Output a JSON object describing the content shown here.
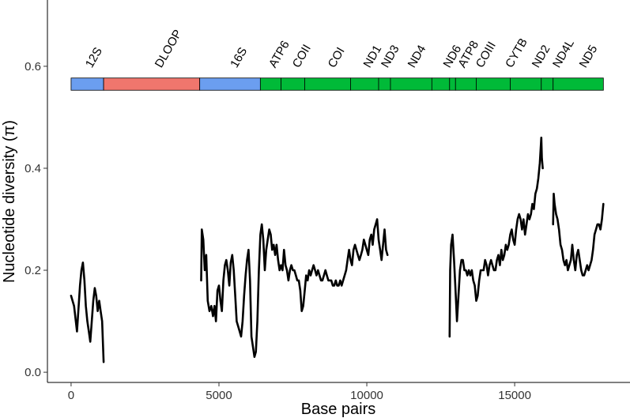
{
  "chart_data": {
    "type": "line",
    "xlabel": "Base pairs",
    "ylabel": "Nucleotide diversity  (π)",
    "xlim": [
      -800,
      18900
    ],
    "ylim": [
      -0.02,
      0.73
    ],
    "x_ticks": [
      0,
      5000,
      10000,
      15000
    ],
    "x_tick_labels": [
      "0",
      "5000",
      "10000",
      "15000"
    ],
    "y_ticks": [
      0.0,
      0.2,
      0.4,
      0.6
    ],
    "y_tick_labels": [
      "0.0",
      "0.2",
      "0.4",
      "0.6"
    ],
    "grid": false,
    "line_color": "#000000",
    "gene_bar_y": [
      0.553,
      0.577
    ],
    "genes": [
      {
        "name": "12S",
        "start": 0,
        "end": 1100,
        "color": "#6b9ef0",
        "label_x": 700
      },
      {
        "name": "DLOOP",
        "start": 1100,
        "end": 4350,
        "color": "#f0766d",
        "label_x": 3050
      },
      {
        "name": "16S",
        "start": 4350,
        "end": 6400,
        "color": "#6b9ef0",
        "label_x": 5600
      },
      {
        "name": "ATP6",
        "start": 6400,
        "end": 7100,
        "color": "#00ba38",
        "label_x": 6900
      },
      {
        "name": "COII",
        "start": 7100,
        "end": 7900,
        "color": "#00ba38",
        "label_x": 7700
      },
      {
        "name": "COI",
        "start": 7900,
        "end": 9450,
        "color": "#00ba38",
        "label_x": 8900
      },
      {
        "name": "ND1",
        "start": 9450,
        "end": 10400,
        "color": "#00ba38",
        "label_x": 10100
      },
      {
        "name": "ND3",
        "start": 10400,
        "end": 10800,
        "color": "#00ba38",
        "label_x": 10700
      },
      {
        "name": "ND4",
        "start": 10800,
        "end": 12200,
        "color": "#00ba38",
        "label_x": 11600
      },
      {
        "name": "ND6",
        "start": 12200,
        "end": 12800,
        "color": "#00ba38",
        "label_x": 12800
      },
      {
        "name": "ATP8",
        "start": 12800,
        "end": 13000,
        "color": "#00ba38",
        "label_x": 13300
      },
      {
        "name": "COIII",
        "start": 13000,
        "end": 13700,
        "color": "#00ba38",
        "label_x": 13900
      },
      {
        "name": "CYTB",
        "start": 13700,
        "end": 14850,
        "color": "#00ba38",
        "label_x": 14900
      },
      {
        "name": "ND2",
        "start": 14850,
        "end": 15900,
        "color": "#00ba38",
        "label_x": 15800
      },
      {
        "name": "ND4L",
        "start": 15900,
        "end": 16300,
        "color": "#00ba38",
        "label_x": 16500
      },
      {
        "name": "ND5",
        "start": 16300,
        "end": 18000,
        "color": "#00ba38",
        "label_x": 17400
      }
    ],
    "series": [
      {
        "segments": [
          [
            [
              0,
              0.15
            ],
            [
              100,
              0.13
            ],
            [
              200,
              0.08
            ],
            [
              300,
              0.17
            ],
            [
              350,
              0.2
            ],
            [
              400,
              0.215
            ],
            [
              450,
              0.18
            ],
            [
              500,
              0.13
            ],
            [
              550,
              0.1
            ],
            [
              600,
              0.08
            ],
            [
              650,
              0.06
            ],
            [
              700,
              0.1
            ],
            [
              750,
              0.14
            ],
            [
              800,
              0.165
            ],
            [
              850,
              0.15
            ],
            [
              900,
              0.12
            ],
            [
              950,
              0.14
            ],
            [
              1000,
              0.12
            ],
            [
              1050,
              0.1
            ],
            [
              1100,
              0.02
            ]
          ],
          [
            [
              4400,
              0.18
            ],
            [
              4420,
              0.28
            ],
            [
              4470,
              0.26
            ],
            [
              4520,
              0.2
            ],
            [
              4570,
              0.23
            ],
            [
              4620,
              0.14
            ],
            [
              4680,
              0.12
            ],
            [
              4740,
              0.13
            ],
            [
              4800,
              0.11
            ],
            [
              4850,
              0.13
            ],
            [
              4900,
              0.1
            ],
            [
              4950,
              0.16
            ],
            [
              5000,
              0.17
            ],
            [
              5050,
              0.14
            ],
            [
              5100,
              0.12
            ],
            [
              5150,
              0.18
            ],
            [
              5200,
              0.21
            ],
            [
              5250,
              0.22
            ],
            [
              5300,
              0.2
            ],
            [
              5350,
              0.17
            ],
            [
              5400,
              0.215
            ],
            [
              5450,
              0.23
            ],
            [
              5500,
              0.2
            ],
            [
              5550,
              0.15
            ],
            [
              5600,
              0.1
            ],
            [
              5650,
              0.09
            ],
            [
              5700,
              0.08
            ],
            [
              5750,
              0.07
            ],
            [
              5800,
              0.1
            ],
            [
              5850,
              0.15
            ],
            [
              5900,
              0.19
            ],
            [
              5950,
              0.22
            ],
            [
              6000,
              0.24
            ],
            [
              6050,
              0.18
            ],
            [
              6100,
              0.07
            ],
            [
              6150,
              0.05
            ],
            [
              6200,
              0.03
            ],
            [
              6250,
              0.04
            ],
            [
              6300,
              0.1
            ],
            [
              6350,
              0.2
            ],
            [
              6400,
              0.27
            ],
            [
              6450,
              0.29
            ],
            [
              6500,
              0.26
            ],
            [
              6550,
              0.2
            ],
            [
              6600,
              0.24
            ],
            [
              6650,
              0.26
            ],
            [
              6700,
              0.28
            ],
            [
              6750,
              0.27
            ],
            [
              6800,
              0.24
            ],
            [
              6850,
              0.25
            ],
            [
              6900,
              0.23
            ],
            [
              6950,
              0.25
            ],
            [
              7000,
              0.22
            ],
            [
              7050,
              0.2
            ],
            [
              7100,
              0.21
            ],
            [
              7150,
              0.2
            ],
            [
              7200,
              0.24
            ],
            [
              7250,
              0.21
            ],
            [
              7300,
              0.2
            ],
            [
              7350,
              0.18
            ],
            [
              7400,
              0.2
            ],
            [
              7450,
              0.21
            ],
            [
              7500,
              0.2
            ],
            [
              7550,
              0.2
            ],
            [
              7600,
              0.19
            ],
            [
              7650,
              0.18
            ],
            [
              7700,
              0.18
            ],
            [
              7750,
              0.16
            ],
            [
              7800,
              0.12
            ],
            [
              7850,
              0.13
            ],
            [
              7900,
              0.16
            ],
            [
              7950,
              0.19
            ],
            [
              8000,
              0.18
            ],
            [
              8050,
              0.2
            ],
            [
              8100,
              0.19
            ],
            [
              8150,
              0.2
            ],
            [
              8200,
              0.21
            ],
            [
              8250,
              0.2
            ],
            [
              8300,
              0.19
            ],
            [
              8350,
              0.2
            ],
            [
              8400,
              0.19
            ],
            [
              8450,
              0.18
            ],
            [
              8500,
              0.18
            ],
            [
              8550,
              0.19
            ],
            [
              8600,
              0.2
            ],
            [
              8650,
              0.19
            ],
            [
              8700,
              0.18
            ],
            [
              8750,
              0.18
            ],
            [
              8800,
              0.18
            ],
            [
              8850,
              0.17
            ],
            [
              8900,
              0.17
            ],
            [
              8950,
              0.18
            ],
            [
              9000,
              0.17
            ],
            [
              9050,
              0.17
            ],
            [
              9100,
              0.18
            ],
            [
              9150,
              0.17
            ],
            [
              9200,
              0.18
            ],
            [
              9250,
              0.19
            ],
            [
              9300,
              0.2
            ],
            [
              9350,
              0.22
            ],
            [
              9400,
              0.24
            ],
            [
              9450,
              0.22
            ],
            [
              9500,
              0.21
            ],
            [
              9550,
              0.24
            ],
            [
              9600,
              0.25
            ],
            [
              9650,
              0.24
            ],
            [
              9700,
              0.23
            ],
            [
              9750,
              0.22
            ],
            [
              9800,
              0.23
            ],
            [
              9850,
              0.24
            ],
            [
              9900,
              0.26
            ],
            [
              9950,
              0.25
            ],
            [
              10000,
              0.24
            ],
            [
              10050,
              0.23
            ],
            [
              10100,
              0.26
            ],
            [
              10150,
              0.27
            ],
            [
              10200,
              0.25
            ],
            [
              10250,
              0.28
            ],
            [
              10300,
              0.29
            ],
            [
              10350,
              0.3
            ],
            [
              10400,
              0.26
            ],
            [
              10450,
              0.24
            ],
            [
              10500,
              0.22
            ],
            [
              10550,
              0.25
            ],
            [
              10600,
              0.28
            ],
            [
              10650,
              0.24
            ],
            [
              10700,
              0.23
            ]
          ],
          [
            [
              12800,
              0.07
            ],
            [
              12820,
              0.2
            ],
            [
              12850,
              0.25
            ],
            [
              12900,
              0.27
            ],
            [
              12950,
              0.22
            ],
            [
              13000,
              0.16
            ],
            [
              13050,
              0.1
            ],
            [
              13100,
              0.15
            ],
            [
              13150,
              0.2
            ],
            [
              13200,
              0.22
            ],
            [
              13250,
              0.22
            ],
            [
              13300,
              0.2
            ],
            [
              13350,
              0.2
            ],
            [
              13400,
              0.19
            ],
            [
              13450,
              0.2
            ],
            [
              13500,
              0.19
            ],
            [
              13550,
              0.2
            ],
            [
              13600,
              0.18
            ],
            [
              13650,
              0.17
            ],
            [
              13700,
              0.14
            ],
            [
              13750,
              0.15
            ],
            [
              13800,
              0.18
            ],
            [
              13850,
              0.2
            ],
            [
              13900,
              0.2
            ],
            [
              13950,
              0.2
            ],
            [
              14000,
              0.22
            ],
            [
              14050,
              0.21
            ],
            [
              14100,
              0.19
            ],
            [
              14150,
              0.21
            ],
            [
              14200,
              0.22
            ],
            [
              14250,
              0.21
            ],
            [
              14300,
              0.2
            ],
            [
              14350,
              0.2
            ],
            [
              14400,
              0.22
            ],
            [
              14450,
              0.23
            ],
            [
              14500,
              0.21
            ],
            [
              14550,
              0.24
            ],
            [
              14600,
              0.22
            ],
            [
              14650,
              0.23
            ],
            [
              14700,
              0.25
            ],
            [
              14750,
              0.24
            ],
            [
              14800,
              0.25
            ],
            [
              14850,
              0.27
            ],
            [
              14900,
              0.28
            ],
            [
              14950,
              0.26
            ],
            [
              15000,
              0.25
            ],
            [
              15050,
              0.28
            ],
            [
              15100,
              0.3
            ],
            [
              15150,
              0.31
            ],
            [
              15200,
              0.3
            ],
            [
              15250,
              0.28
            ],
            [
              15300,
              0.3
            ],
            [
              15350,
              0.27
            ],
            [
              15400,
              0.29
            ],
            [
              15450,
              0.31
            ],
            [
              15500,
              0.3
            ],
            [
              15550,
              0.31
            ],
            [
              15600,
              0.33
            ],
            [
              15650,
              0.32
            ],
            [
              15700,
              0.35
            ],
            [
              15750,
              0.36
            ],
            [
              15800,
              0.38
            ],
            [
              15850,
              0.41
            ],
            [
              15900,
              0.46
            ],
            [
              15920,
              0.42
            ],
            [
              15950,
              0.4
            ]
          ],
          [
            [
              16300,
              0.29
            ],
            [
              16320,
              0.35
            ],
            [
              16350,
              0.33
            ],
            [
              16400,
              0.31
            ],
            [
              16450,
              0.3
            ],
            [
              16500,
              0.28
            ],
            [
              16550,
              0.25
            ],
            [
              16600,
              0.24
            ],
            [
              16650,
              0.22
            ],
            [
              16700,
              0.21
            ],
            [
              16750,
              0.22
            ],
            [
              16800,
              0.2
            ],
            [
              16850,
              0.21
            ],
            [
              16900,
              0.22
            ],
            [
              16950,
              0.25
            ],
            [
              17000,
              0.22
            ],
            [
              17050,
              0.2
            ],
            [
              17100,
              0.23
            ],
            [
              17150,
              0.24
            ],
            [
              17200,
              0.22
            ],
            [
              17250,
              0.2
            ],
            [
              17300,
              0.19
            ],
            [
              17350,
              0.19
            ],
            [
              17400,
              0.2
            ],
            [
              17450,
              0.21
            ],
            [
              17500,
              0.2
            ],
            [
              17550,
              0.21
            ],
            [
              17600,
              0.22
            ],
            [
              17650,
              0.24
            ],
            [
              17700,
              0.27
            ],
            [
              17750,
              0.28
            ],
            [
              17800,
              0.29
            ],
            [
              17850,
              0.29
            ],
            [
              17900,
              0.28
            ],
            [
              17950,
              0.3
            ],
            [
              18000,
              0.33
            ]
          ]
        ]
      }
    ]
  }
}
